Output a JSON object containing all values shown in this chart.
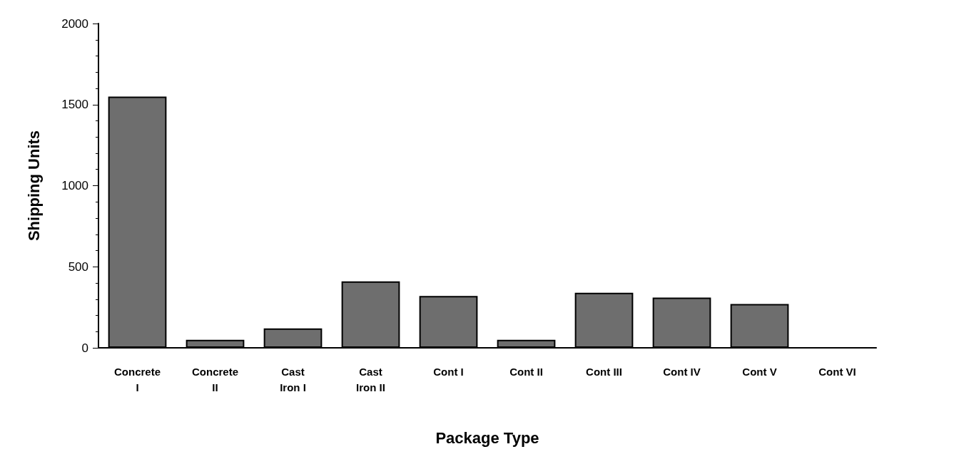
{
  "chart_data": {
    "type": "bar",
    "xlabel": "Package Type",
    "ylabel": "Shipping Units",
    "categories": [
      "Concrete\nI",
      "Concrete\nII",
      "Cast\nIron I",
      "Cast\nIron II",
      "Cont I",
      "Cont II",
      "Cont III",
      "Cont IV",
      "Cont V",
      "Cont VI"
    ],
    "values": [
      1550,
      50,
      120,
      410,
      320,
      50,
      340,
      310,
      270,
      0
    ],
    "color": "#6e6e6e",
    "ylim": [
      0,
      2000
    ],
    "yticks": [
      0,
      500,
      1000,
      1500,
      2000
    ],
    "grid": false
  }
}
